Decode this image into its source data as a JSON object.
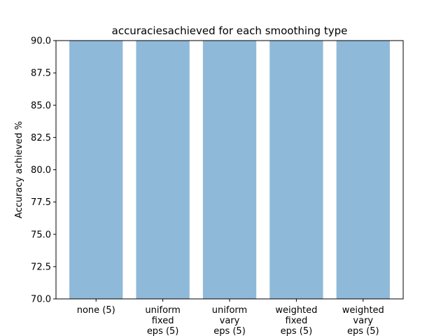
{
  "chart_data": {
    "type": "bar",
    "title": "accuraciesachieved for each smoothing type",
    "xlabel": "",
    "ylabel": "Accuracy achieved %",
    "ylim": [
      70,
      90
    ],
    "yticks": [
      "70.0",
      "72.5",
      "75.0",
      "77.5",
      "80.0",
      "82.5",
      "85.0",
      "87.5",
      "90.0"
    ],
    "grid": false,
    "categories": [
      [
        "none (5)"
      ],
      [
        "uniform",
        "fixed",
        "eps (5)"
      ],
      [
        "uniform",
        "vary",
        "eps (5)"
      ],
      [
        "weighted",
        "fixed",
        "eps (5)"
      ],
      [
        "weighted",
        "vary",
        "eps (5)"
      ]
    ],
    "values": [
      90,
      90,
      90,
      90,
      90
    ],
    "bar_color": "#8fb9d9"
  }
}
